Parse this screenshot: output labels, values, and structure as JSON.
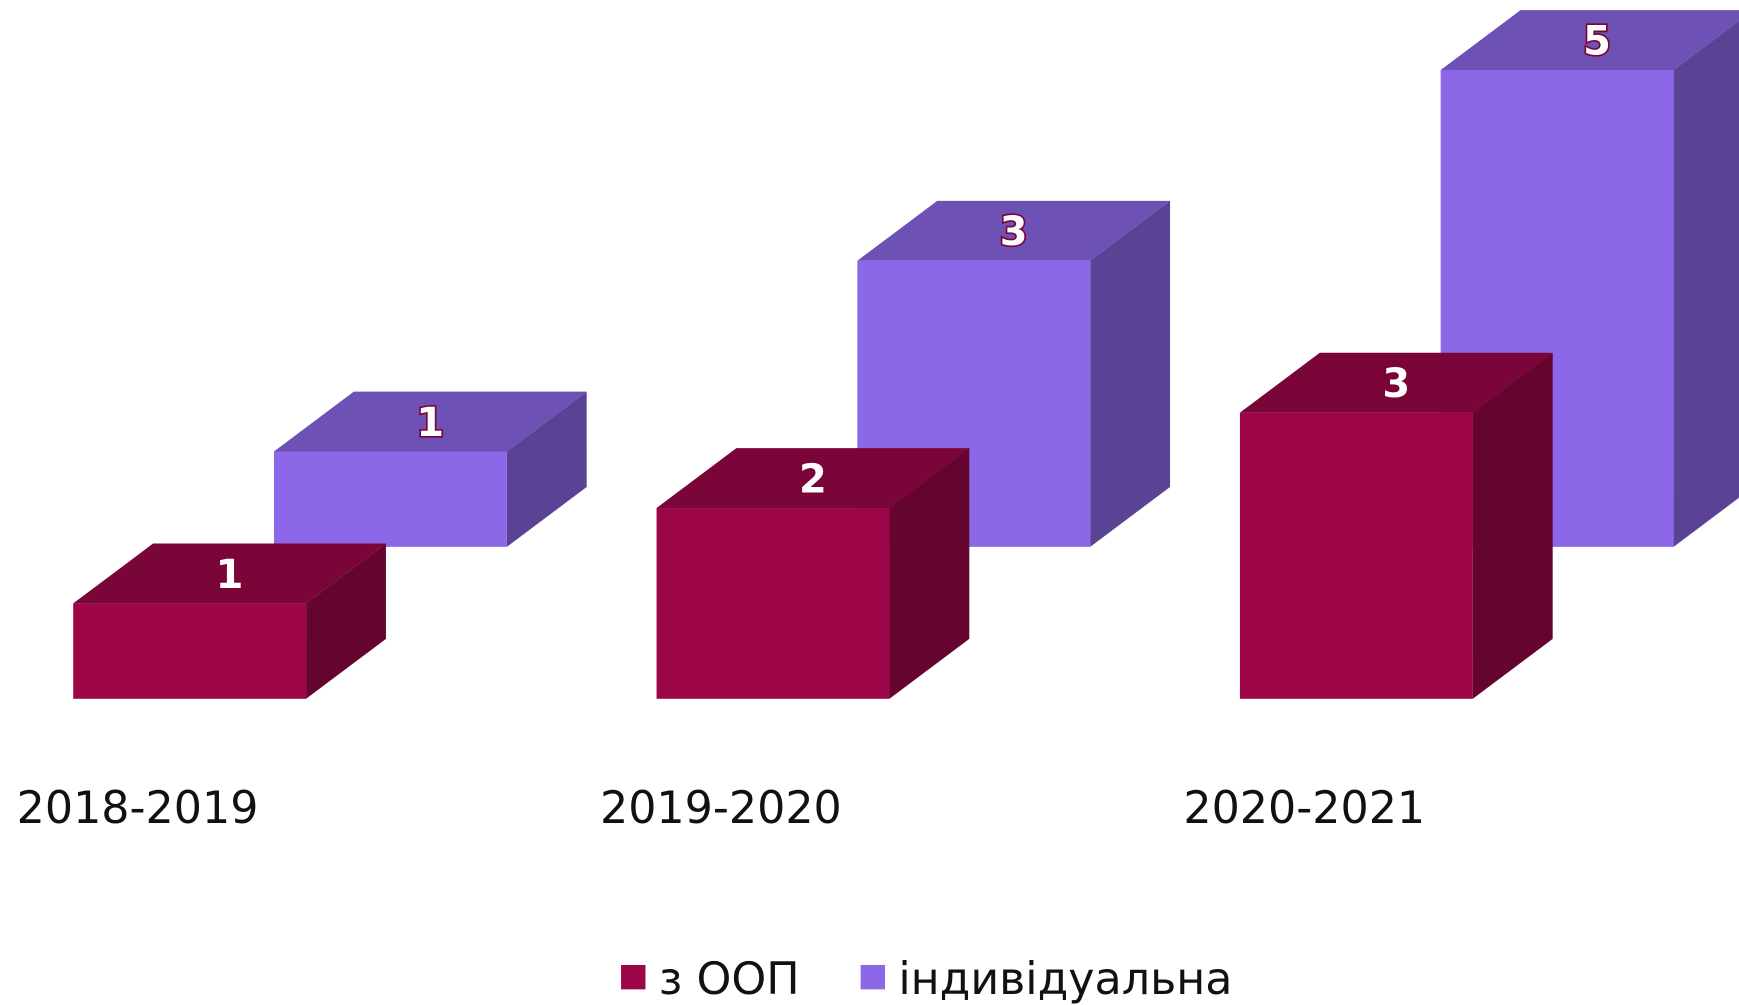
{
  "chart_data": {
    "type": "bar3d",
    "categories": [
      "2018-2019",
      "2019-2020",
      "2020-2021"
    ],
    "series": [
      {
        "name": "з ООП",
        "color": "#9c0649",
        "values": [
          1,
          2,
          3
        ]
      },
      {
        "name": "індивідуальна",
        "color": "#8c68e8",
        "values": [
          1,
          3,
          5
        ]
      }
    ],
    "legend": "bottom",
    "data_labels": true
  }
}
